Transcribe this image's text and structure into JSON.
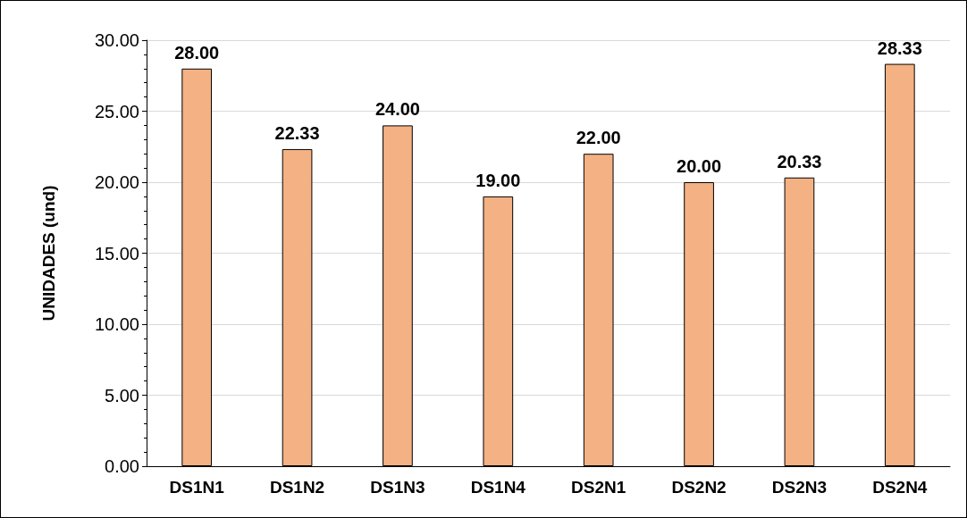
{
  "chart_data": {
    "type": "bar",
    "ylabel": "UNIDADES (und)",
    "categories": [
      "DS1N1",
      "DS1N2",
      "DS1N3",
      "DS1N4",
      "DS2N1",
      "DS2N2",
      "DS2N3",
      "DS2N4"
    ],
    "values": [
      28,
      22.33,
      24,
      19,
      22,
      20,
      20.33,
      28.33
    ],
    "value_labels": [
      "28.00",
      "22.33",
      "24.00",
      "19.00",
      "22.00",
      "20.00",
      "20.33",
      "28.33"
    ],
    "color": "#f4b183",
    "ylim": [
      0,
      30
    ],
    "yticks": [
      {
        "value": 0,
        "label": "0.00"
      },
      {
        "value": 5,
        "label": "5.00"
      },
      {
        "value": 10,
        "label": "10.00"
      },
      {
        "value": 15,
        "label": "15.00"
      },
      {
        "value": 20,
        "label": "20.00"
      },
      {
        "value": 25,
        "label": "25.00"
      },
      {
        "value": 30,
        "label": "30.00"
      }
    ],
    "grid": "y"
  }
}
